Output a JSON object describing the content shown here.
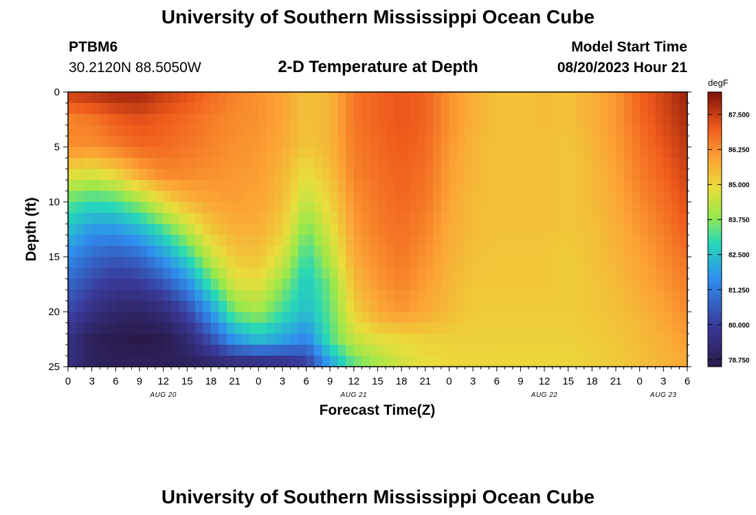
{
  "header": {
    "title": "University of Southern Mississippi Ocean Cube",
    "station_id": "PTBM6",
    "station_coords": "30.2120N  88.5050W",
    "subtitle": "2-D Temperature at Depth",
    "model_start_label": "Model Start Time",
    "model_start_value": "08/20/2023 Hour 21"
  },
  "footer": {
    "title": "University of Southern Mississippi Ocean Cube"
  },
  "colors": {
    "text": "#000000",
    "background": "#ffffff"
  },
  "chart_data": {
    "type": "heatmap",
    "xlabel": "Forecast Time(Z)",
    "ylabel": "Depth (ft)",
    "colorbar_label": "degF",
    "x_hours": [
      0,
      78
    ],
    "y_depth_ft": [
      0,
      25
    ],
    "x_tick_labels": [
      "0",
      "3",
      "6",
      "9",
      "12",
      "15",
      "18",
      "21",
      "0",
      "3",
      "6",
      "9",
      "12",
      "15",
      "18",
      "21",
      "0",
      "3",
      "6",
      "9",
      "12",
      "15",
      "18",
      "21",
      "0",
      "3",
      "6"
    ],
    "date_labels": [
      {
        "text": "AUG 20",
        "hour": 12
      },
      {
        "text": "AUG 21",
        "hour": 36
      },
      {
        "text": "AUG 22",
        "hour": 60
      },
      {
        "text": "AUG 23",
        "hour": 75
      }
    ],
    "y_tick_labels": [
      "0",
      "5",
      "10",
      "15",
      "20",
      "25"
    ],
    "y_ticks": [
      0,
      5,
      10,
      15,
      20,
      25
    ],
    "colorbar_ticks": [
      "87.500",
      "86.250",
      "85.000",
      "83.750",
      "82.500",
      "81.250",
      "80.000",
      "78.750"
    ],
    "colorbar_values": [
      87.5,
      86.25,
      85.0,
      83.75,
      82.5,
      81.25,
      80.0,
      78.75
    ],
    "value_range": [
      78.5,
      88.3
    ],
    "grid_hours": [
      0,
      3,
      6,
      9,
      12,
      15,
      18,
      21,
      24,
      27,
      30,
      33,
      36,
      39,
      42,
      45,
      48,
      51,
      54,
      57,
      60,
      63,
      66,
      69,
      72,
      75,
      78
    ],
    "grid_depths": [
      0,
      2.5,
      5,
      7.5,
      10,
      12.5,
      15,
      17.5,
      20,
      22.5,
      25
    ],
    "values_by_depth": [
      [
        87.5,
        87.7,
        87.9,
        87.9,
        87.5,
        87.2,
        86.8,
        86.4,
        86.2,
        85.9,
        85.4,
        85.6,
        86.6,
        86.9,
        87.1,
        86.9,
        86.2,
        85.7,
        85.4,
        85.4,
        85.5,
        85.4,
        85.7,
        86.1,
        86.9,
        87.4,
        88.0
      ],
      [
        86.4,
        86.6,
        87.0,
        87.2,
        87.0,
        86.8,
        86.5,
        86.3,
        86.2,
        85.9,
        85.4,
        85.6,
        86.6,
        86.9,
        87.1,
        86.9,
        86.2,
        85.7,
        85.4,
        85.4,
        85.5,
        85.4,
        85.7,
        86.1,
        86.8,
        87.3,
        87.8
      ],
      [
        86.3,
        86.2,
        86.5,
        86.8,
        86.8,
        86.6,
        86.4,
        86.2,
        86.1,
        85.8,
        85.3,
        85.6,
        86.5,
        86.8,
        87.0,
        86.8,
        86.1,
        85.6,
        85.4,
        85.4,
        85.4,
        85.3,
        85.6,
        86.0,
        86.6,
        87.1,
        87.6
      ],
      [
        84.8,
        84.6,
        85.0,
        85.8,
        86.3,
        86.3,
        86.2,
        86.1,
        86.0,
        85.6,
        84.8,
        85.4,
        86.4,
        86.7,
        86.9,
        86.7,
        86.0,
        85.6,
        85.4,
        85.4,
        85.4,
        85.3,
        85.5,
        85.9,
        86.5,
        86.9,
        87.4
      ],
      [
        83.4,
        83.0,
        83.2,
        83.9,
        84.9,
        85.6,
        85.9,
        86.0,
        85.9,
        85.5,
        84.3,
        85.1,
        86.2,
        86.6,
        86.8,
        86.6,
        85.9,
        85.5,
        85.4,
        85.4,
        85.4,
        85.3,
        85.5,
        85.8,
        86.3,
        86.7,
        87.2
      ],
      [
        82.5,
        81.8,
        81.8,
        82.3,
        83.2,
        84.3,
        85.3,
        85.7,
        85.7,
        85.2,
        83.6,
        84.7,
        86.0,
        86.5,
        86.7,
        86.4,
        85.8,
        85.5,
        85.4,
        85.4,
        85.4,
        85.3,
        85.4,
        85.7,
        86.1,
        86.5,
        87.0
      ],
      [
        81.6,
        80.9,
        80.6,
        80.9,
        81.8,
        82.9,
        84.4,
        85.3,
        85.4,
        84.6,
        83.0,
        84.2,
        85.8,
        86.3,
        86.6,
        86.2,
        85.7,
        85.4,
        85.3,
        85.3,
        85.3,
        85.2,
        85.4,
        85.6,
        85.9,
        86.3,
        86.7
      ],
      [
        80.9,
        80.2,
        79.8,
        79.9,
        80.5,
        81.5,
        83.2,
        84.6,
        84.8,
        83.8,
        82.6,
        83.6,
        85.5,
        86.1,
        86.4,
        86.0,
        85.6,
        85.3,
        85.3,
        85.3,
        85.3,
        85.2,
        85.3,
        85.5,
        85.8,
        86.1,
        86.5
      ],
      [
        80.3,
        79.5,
        79.1,
        79.0,
        79.3,
        80.2,
        81.8,
        83.6,
        84.0,
        83.1,
        82.4,
        83.4,
        85.1,
        85.8,
        86.1,
        85.8,
        85.5,
        85.2,
        85.2,
        85.2,
        85.2,
        85.2,
        85.3,
        85.4,
        85.6,
        85.9,
        86.3
      ],
      [
        79.6,
        78.8,
        78.6,
        78.5,
        78.6,
        79.2,
        80.4,
        81.8,
        82.4,
        82.0,
        81.4,
        83.2,
        84.4,
        84.8,
        85.0,
        85.1,
        85.1,
        85.1,
        85.1,
        85.1,
        85.1,
        85.1,
        85.2,
        85.3,
        85.5,
        85.7,
        86.0
      ],
      [
        79.5,
        78.9,
        78.8,
        78.8,
        78.8,
        78.8,
        78.9,
        79.0,
        79.0,
        79.2,
        79.8,
        81.8,
        83.3,
        83.9,
        84.5,
        84.8,
        85.0,
        85.0,
        85.0,
        85.0,
        85.0,
        85.0,
        85.1,
        85.2,
        85.4,
        85.6,
        85.8
      ]
    ]
  }
}
